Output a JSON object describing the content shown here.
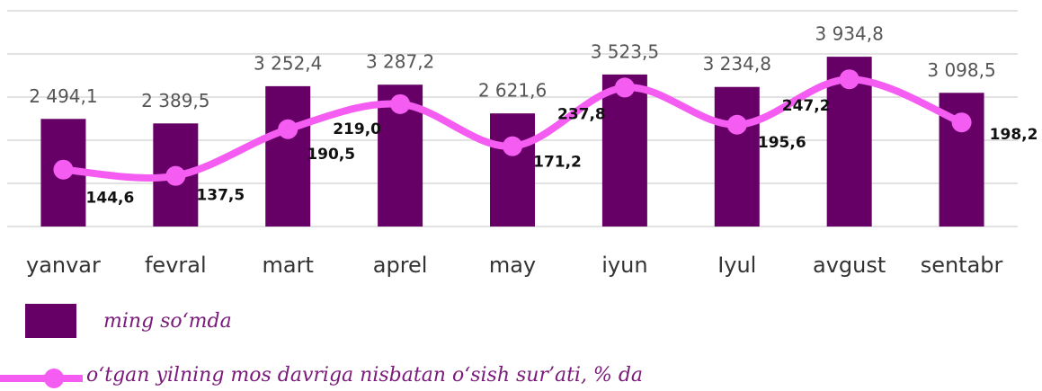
{
  "chart_data": {
    "type": "bar_line",
    "categories": [
      "yanvar",
      "fevral",
      "mart",
      "aprel",
      "may",
      "iyun",
      "Iyul",
      "avgust",
      "sentabr"
    ],
    "series": [
      {
        "name": "ming so‘mda",
        "type": "bar",
        "color": "#660066",
        "values": [
          2494.1,
          2389.5,
          3252.4,
          3287.2,
          2621.6,
          3523.5,
          3234.8,
          3934.8,
          3098.5
        ],
        "value_labels": [
          "2 494,1",
          "2 389,5",
          "3 252,4",
          "3 287,2",
          "2 621,6",
          "3 523,5",
          "3 234,8",
          "3 934,8",
          "3 098,5"
        ]
      },
      {
        "name": "o‘tgan yilning mos davriga nisbatan o‘sish sur’ati, % da",
        "type": "line",
        "axis": "y2",
        "color": "#f55cf2",
        "values": [
          144.6,
          137.5,
          190.5,
          219.0,
          171.2,
          237.8,
          195.6,
          247.2,
          198.2
        ],
        "value_labels": [
          "144,6",
          "137,5",
          "190,5",
          "219,0",
          "171,2",
          "237,8",
          "195,6",
          "247,2",
          "198,2"
        ]
      }
    ],
    "ylim": [
      0,
      5000
    ],
    "yticks": [
      0,
      1000,
      2000,
      3000,
      4000,
      5000
    ],
    "y2lim": [
      80,
      325
    ],
    "grid": true
  }
}
